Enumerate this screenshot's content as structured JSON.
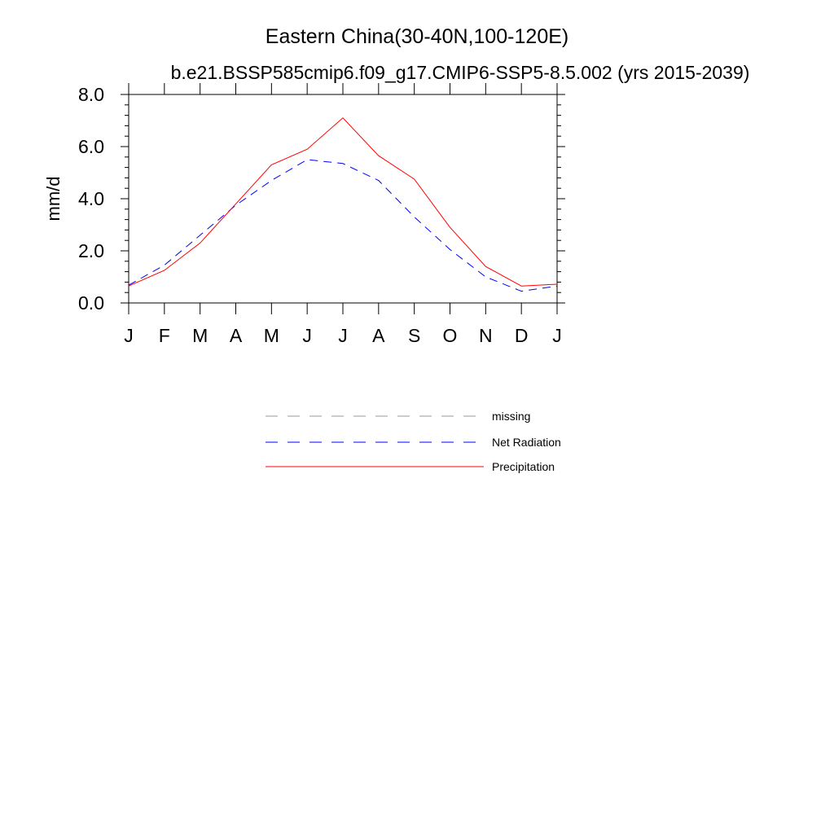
{
  "chart_data": {
    "type": "line",
    "title": "Eastern China(30-40N,100-120E)",
    "subtitle": "b.e21.BSSP585cmip6.f09_g17.CMIP6-SSP5-8.5.002 (yrs 2015-2039)",
    "xlabel": "",
    "ylabel": "mm/d",
    "categories": [
      "J",
      "F",
      "M",
      "A",
      "M",
      "J",
      "J",
      "A",
      "S",
      "O",
      "N",
      "D",
      "J"
    ],
    "ylim": [
      0,
      8
    ],
    "yticks": [
      0,
      2,
      4,
      6,
      8
    ],
    "ytick_labels": [
      "0.0",
      "2.0",
      "4.0",
      "6.0",
      "8.0"
    ],
    "grid": false,
    "legend_position": "bottom-center",
    "legend": [
      {
        "name": "missing",
        "color": "#999999",
        "style": "dashed"
      },
      {
        "name": "Net Radiation",
        "color": "#0000ff",
        "style": "dashed"
      },
      {
        "name": "Precipitation",
        "color": "#ff0000",
        "style": "solid"
      }
    ],
    "series": [
      {
        "name": "Net Radiation",
        "color": "#0000ff",
        "style": "dashed",
        "values": [
          0.68,
          1.45,
          2.6,
          3.75,
          4.7,
          5.5,
          5.35,
          4.7,
          3.3,
          2.05,
          1.0,
          0.45,
          0.65
        ]
      },
      {
        "name": "Precipitation",
        "color": "#ff0000",
        "style": "solid",
        "values": [
          0.65,
          1.25,
          2.3,
          3.8,
          5.3,
          5.9,
          7.1,
          5.65,
          4.75,
          2.9,
          1.4,
          0.65,
          0.72
        ]
      }
    ]
  }
}
